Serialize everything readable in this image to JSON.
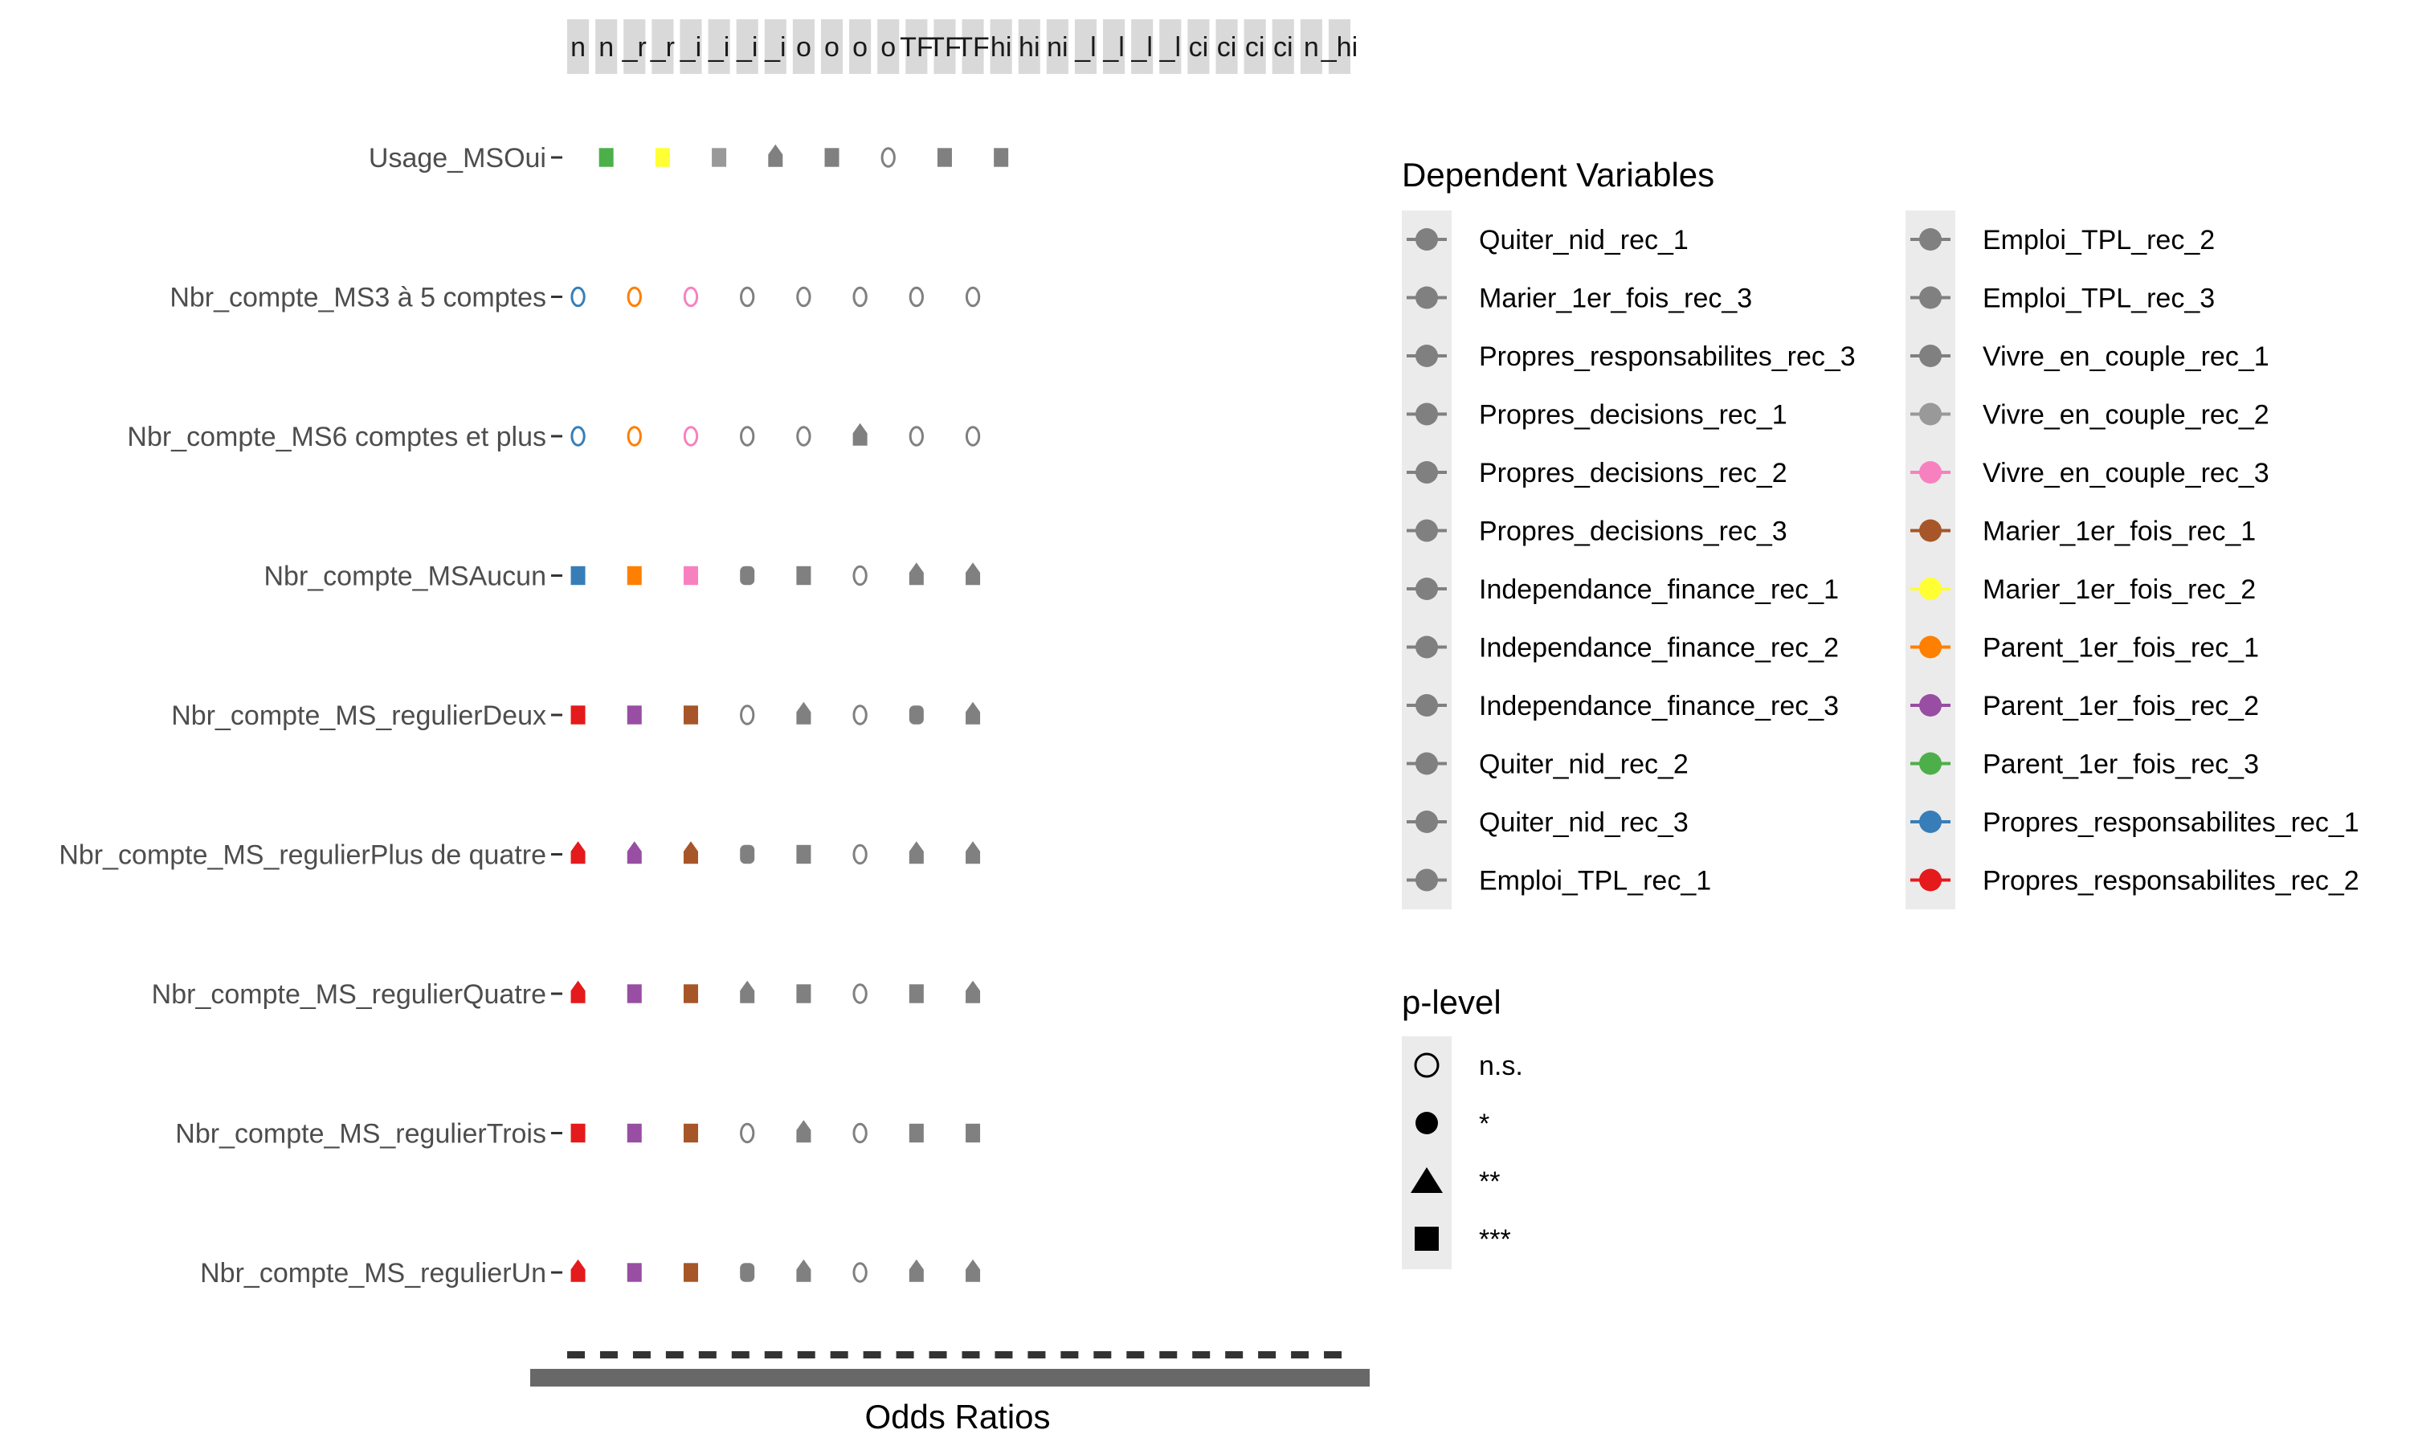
{
  "chart_data": {
    "type": "scatter",
    "xlabel": "Odds Ratios",
    "ylabel": "",
    "grid": false,
    "rows": [
      "Usage_MSOui",
      "Nbr_compte_MS3 à 5 comptes",
      "Nbr_compte_MS6 comptes et plus",
      "Nbr_compte_MSAucun",
      "Nbr_compte_MS_regulierDeux",
      "Nbr_compte_MS_regulierPlus de quatre",
      "Nbr_compte_MS_regulierQuatre",
      "Nbr_compte_MS_regulierTrois",
      "Nbr_compte_MS_regulierUn"
    ],
    "strip_labels": [
      "n",
      "n",
      "_r",
      "_r",
      "_i",
      "_i",
      "_i",
      "_i",
      "o",
      "o",
      "o",
      "o",
      "TF",
      "TF",
      "TF",
      "hi",
      "hi",
      "ni",
      "_l",
      "_l",
      "_l",
      "_l",
      "ci",
      "ci",
      "ci",
      "ci",
      "n",
      "_hi"
    ],
    "x_tick_labels_note": "overlapping tick labels, illegible",
    "legend_dependent": {
      "title": "Dependent Variables",
      "entries": [
        {
          "label": "Quiter_nid_rec_1",
          "color": "#808080"
        },
        {
          "label": "Marier_1er_fois_rec_3",
          "color": "#808080"
        },
        {
          "label": "Propres_responsabilites_rec_3",
          "color": "#808080"
        },
        {
          "label": "Propres_decisions_rec_1",
          "color": "#808080"
        },
        {
          "label": "Propres_decisions_rec_2",
          "color": "#808080"
        },
        {
          "label": "Propres_decisions_rec_3",
          "color": "#808080"
        },
        {
          "label": "Independance_finance_rec_1",
          "color": "#808080"
        },
        {
          "label": "Independance_finance_rec_2",
          "color": "#808080"
        },
        {
          "label": "Independance_finance_rec_3",
          "color": "#808080"
        },
        {
          "label": "Quiter_nid_rec_2",
          "color": "#808080"
        },
        {
          "label": "Quiter_nid_rec_3",
          "color": "#808080"
        },
        {
          "label": "Emploi_TPL_rec_1",
          "color": "#808080"
        },
        {
          "label": "Emploi_TPL_rec_2",
          "color": "#808080"
        },
        {
          "label": "Emploi_TPL_rec_3",
          "color": "#808080"
        },
        {
          "label": "Vivre_en_couple_rec_1",
          "color": "#808080"
        },
        {
          "label": "Vivre_en_couple_rec_2",
          "color": "#999999"
        },
        {
          "label": "Vivre_en_couple_rec_3",
          "color": "#F781BF"
        },
        {
          "label": "Marier_1er_fois_rec_1",
          "color": "#A65628"
        },
        {
          "label": "Marier_1er_fois_rec_2",
          "color": "#FFFF33"
        },
        {
          "label": "Parent_1er_fois_rec_1",
          "color": "#FF7F00"
        },
        {
          "label": "Parent_1er_fois_rec_2",
          "color": "#984EA3"
        },
        {
          "label": "Parent_1er_fois_rec_3",
          "color": "#4DAF4A"
        },
        {
          "label": "Propres_responsabilites_rec_1",
          "color": "#377EB8"
        },
        {
          "label": "Propres_responsabilites_rec_2",
          "color": "#E41A1C"
        }
      ]
    },
    "legend_plevel": {
      "title": "p-level",
      "entries": [
        {
          "label": "n.s.",
          "shape": "circle-open"
        },
        {
          "label": "*",
          "shape": "circle"
        },
        {
          "label": "**",
          "shape": "triangle"
        },
        {
          "label": "***",
          "shape": "square"
        }
      ]
    },
    "points": [
      {
        "row": 0,
        "panel": 1,
        "color": "#4DAF4A",
        "shape": "square"
      },
      {
        "row": 0,
        "panel": 3,
        "color": "#FFFF33",
        "shape": "square"
      },
      {
        "row": 0,
        "panel": 5,
        "color": "#999999",
        "shape": "square"
      },
      {
        "row": 0,
        "panel": 7,
        "color": "#808080",
        "shape": "triangle"
      },
      {
        "row": 0,
        "panel": 9,
        "color": "#808080",
        "shape": "square"
      },
      {
        "row": 0,
        "panel": 11,
        "color": "#808080",
        "shape": "circle-open"
      },
      {
        "row": 0,
        "panel": 13,
        "color": "#808080",
        "shape": "square"
      },
      {
        "row": 0,
        "panel": 15,
        "color": "#808080",
        "shape": "square"
      },
      {
        "row": 1,
        "panel": 0,
        "color": "#377EB8",
        "shape": "circle-open"
      },
      {
        "row": 1,
        "panel": 2,
        "color": "#FF7F00",
        "shape": "circle-open"
      },
      {
        "row": 1,
        "panel": 4,
        "color": "#F781BF",
        "shape": "circle-open"
      },
      {
        "row": 1,
        "panel": 6,
        "color": "#808080",
        "shape": "circle-open"
      },
      {
        "row": 1,
        "panel": 8,
        "color": "#808080",
        "shape": "circle-open"
      },
      {
        "row": 1,
        "panel": 10,
        "color": "#808080",
        "shape": "circle-open"
      },
      {
        "row": 1,
        "panel": 12,
        "color": "#808080",
        "shape": "circle-open"
      },
      {
        "row": 1,
        "panel": 14,
        "color": "#808080",
        "shape": "circle-open"
      },
      {
        "row": 2,
        "panel": 0,
        "color": "#377EB8",
        "shape": "circle-open"
      },
      {
        "row": 2,
        "panel": 2,
        "color": "#FF7F00",
        "shape": "circle-open"
      },
      {
        "row": 2,
        "panel": 4,
        "color": "#F781BF",
        "shape": "circle-open"
      },
      {
        "row": 2,
        "panel": 6,
        "color": "#808080",
        "shape": "circle-open"
      },
      {
        "row": 2,
        "panel": 8,
        "color": "#808080",
        "shape": "circle-open"
      },
      {
        "row": 2,
        "panel": 10,
        "color": "#808080",
        "shape": "triangle"
      },
      {
        "row": 2,
        "panel": 12,
        "color": "#808080",
        "shape": "circle-open"
      },
      {
        "row": 2,
        "panel": 14,
        "color": "#808080",
        "shape": "circle-open"
      },
      {
        "row": 3,
        "panel": 0,
        "color": "#377EB8",
        "shape": "square"
      },
      {
        "row": 3,
        "panel": 2,
        "color": "#FF7F00",
        "shape": "square"
      },
      {
        "row": 3,
        "panel": 4,
        "color": "#F781BF",
        "shape": "square"
      },
      {
        "row": 3,
        "panel": 6,
        "color": "#808080",
        "shape": "circle"
      },
      {
        "row": 3,
        "panel": 8,
        "color": "#808080",
        "shape": "square"
      },
      {
        "row": 3,
        "panel": 10,
        "color": "#808080",
        "shape": "circle-open"
      },
      {
        "row": 3,
        "panel": 12,
        "color": "#808080",
        "shape": "triangle"
      },
      {
        "row": 3,
        "panel": 14,
        "color": "#808080",
        "shape": "triangle"
      },
      {
        "row": 4,
        "panel": 0,
        "color": "#E41A1C",
        "shape": "square"
      },
      {
        "row": 4,
        "panel": 2,
        "color": "#984EA3",
        "shape": "square"
      },
      {
        "row": 4,
        "panel": 4,
        "color": "#A65628",
        "shape": "square"
      },
      {
        "row": 4,
        "panel": 6,
        "color": "#808080",
        "shape": "circle-open"
      },
      {
        "row": 4,
        "panel": 8,
        "color": "#808080",
        "shape": "triangle"
      },
      {
        "row": 4,
        "panel": 10,
        "color": "#808080",
        "shape": "circle-open"
      },
      {
        "row": 4,
        "panel": 12,
        "color": "#808080",
        "shape": "circle"
      },
      {
        "row": 4,
        "panel": 14,
        "color": "#808080",
        "shape": "triangle"
      },
      {
        "row": 5,
        "panel": 0,
        "color": "#E41A1C",
        "shape": "triangle"
      },
      {
        "row": 5,
        "panel": 2,
        "color": "#984EA3",
        "shape": "triangle"
      },
      {
        "row": 5,
        "panel": 4,
        "color": "#A65628",
        "shape": "triangle"
      },
      {
        "row": 5,
        "panel": 6,
        "color": "#808080",
        "shape": "circle"
      },
      {
        "row": 5,
        "panel": 8,
        "color": "#808080",
        "shape": "square"
      },
      {
        "row": 5,
        "panel": 10,
        "color": "#808080",
        "shape": "circle-open"
      },
      {
        "row": 5,
        "panel": 12,
        "color": "#808080",
        "shape": "triangle"
      },
      {
        "row": 5,
        "panel": 14,
        "color": "#808080",
        "shape": "triangle"
      },
      {
        "row": 6,
        "panel": 0,
        "color": "#E41A1C",
        "shape": "triangle"
      },
      {
        "row": 6,
        "panel": 2,
        "color": "#984EA3",
        "shape": "square"
      },
      {
        "row": 6,
        "panel": 4,
        "color": "#A65628",
        "shape": "square"
      },
      {
        "row": 6,
        "panel": 6,
        "color": "#808080",
        "shape": "triangle"
      },
      {
        "row": 6,
        "panel": 8,
        "color": "#808080",
        "shape": "square"
      },
      {
        "row": 6,
        "panel": 10,
        "color": "#808080",
        "shape": "circle-open"
      },
      {
        "row": 6,
        "panel": 12,
        "color": "#808080",
        "shape": "square"
      },
      {
        "row": 6,
        "panel": 14,
        "color": "#808080",
        "shape": "triangle"
      },
      {
        "row": 7,
        "panel": 0,
        "color": "#E41A1C",
        "shape": "square"
      },
      {
        "row": 7,
        "panel": 2,
        "color": "#984EA3",
        "shape": "square"
      },
      {
        "row": 7,
        "panel": 4,
        "color": "#A65628",
        "shape": "square"
      },
      {
        "row": 7,
        "panel": 6,
        "color": "#808080",
        "shape": "circle-open"
      },
      {
        "row": 7,
        "panel": 8,
        "color": "#808080",
        "shape": "triangle"
      },
      {
        "row": 7,
        "panel": 10,
        "color": "#808080",
        "shape": "circle-open"
      },
      {
        "row": 7,
        "panel": 12,
        "color": "#808080",
        "shape": "square"
      },
      {
        "row": 7,
        "panel": 14,
        "color": "#808080",
        "shape": "square"
      },
      {
        "row": 8,
        "panel": 0,
        "color": "#E41A1C",
        "shape": "triangle"
      },
      {
        "row": 8,
        "panel": 2,
        "color": "#984EA3",
        "shape": "square"
      },
      {
        "row": 8,
        "panel": 4,
        "color": "#A65628",
        "shape": "square"
      },
      {
        "row": 8,
        "panel": 6,
        "color": "#808080",
        "shape": "circle"
      },
      {
        "row": 8,
        "panel": 8,
        "color": "#808080",
        "shape": "triangle"
      },
      {
        "row": 8,
        "panel": 10,
        "color": "#808080",
        "shape": "circle-open"
      },
      {
        "row": 8,
        "panel": 12,
        "color": "#808080",
        "shape": "triangle"
      },
      {
        "row": 8,
        "panel": 14,
        "color": "#808080",
        "shape": "triangle"
      }
    ]
  }
}
